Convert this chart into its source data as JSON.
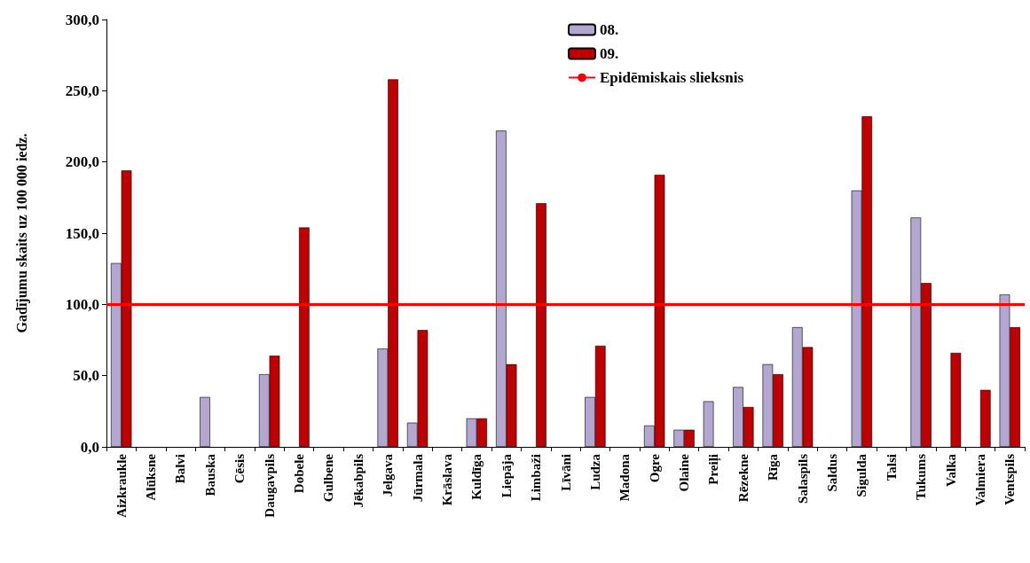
{
  "chart_data": {
    "type": "bar",
    "ylabel": "Gadījumu skaits uz 100 000 iedz.",
    "categories": [
      "Aizkraukle",
      "Alūksne",
      "Balvi",
      "Bauska",
      "Cēsis",
      "Daugavpils",
      "Dobele",
      "Gulbene",
      "Jēkabpils",
      "Jelgava",
      "Jūrmala",
      "Krāslava",
      "Kuldīga",
      "Liepāja",
      "Limbaži",
      "Līvāni",
      "Ludza",
      "Madona",
      "Ogre",
      "Olaine",
      "Preiļi",
      "Rēzekne",
      "Rīga",
      "Salaspils",
      "Saldus",
      "Sigulda",
      "Talsi",
      "Tukums",
      "Valka",
      "Valmiera",
      "Ventspils"
    ],
    "series": [
      {
        "name": "08.",
        "color": "#b3a7d1",
        "values": [
          129,
          0,
          0,
          35,
          0,
          51,
          0,
          0,
          0,
          69,
          17,
          0,
          20,
          222,
          0,
          0,
          35,
          0,
          15,
          12,
          32,
          42,
          58,
          84,
          0,
          180,
          0,
          161,
          0,
          0,
          107
        ]
      },
      {
        "name": "09.",
        "color": "#c00000",
        "values": [
          194,
          0,
          0,
          0,
          0,
          64,
          154,
          0,
          0,
          258,
          82,
          0,
          20,
          58,
          171,
          0,
          71,
          0,
          191,
          12,
          0,
          28,
          51,
          70,
          0,
          232,
          0,
          115,
          66,
          40,
          84
        ]
      }
    ],
    "ylim": [
      0,
      300
    ],
    "yticks": [
      {
        "value": 0,
        "label": "0,0"
      },
      {
        "value": 50,
        "label": "50,0"
      },
      {
        "value": 100,
        "label": "100,0"
      },
      {
        "value": 150,
        "label": "150,0"
      },
      {
        "value": 200,
        "label": "200,0"
      },
      {
        "value": 250,
        "label": "250,0"
      },
      {
        "value": 300,
        "label": "300,0"
      }
    ],
    "ref_lines": [
      {
        "axis": "y",
        "value": 100,
        "label": "Epidēmiskais slieksnis",
        "color": "#ff0000"
      }
    ],
    "grid": false,
    "legend": "top"
  }
}
